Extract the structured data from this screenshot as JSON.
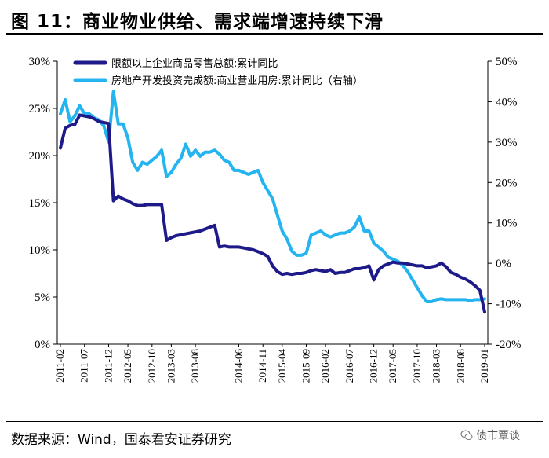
{
  "title": "图  11：商业物业供给、需求端增速持续下滑",
  "source": "数据来源：Wind，国泰君安证券研究",
  "watermark": "债市覃谈",
  "colors": {
    "series1": "#1f1a8a",
    "series2": "#24b5f0",
    "axis": "#000000"
  },
  "chart_data": {
    "type": "line",
    "title": "商业物业供给、需求端增速持续下滑",
    "x": [
      "2011-02",
      "2011-03",
      "2011-04",
      "2011-05",
      "2011-06",
      "2011-07",
      "2011-08",
      "2011-09",
      "2011-10",
      "2011-11",
      "2011-12",
      "2012-02",
      "2012-03",
      "2012-04",
      "2012-05",
      "2012-06",
      "2012-07",
      "2012-08",
      "2012-09",
      "2012-10",
      "2012-11",
      "2012-12",
      "2013-02",
      "2013-03",
      "2013-04",
      "2013-05",
      "2013-06",
      "2013-07",
      "2013-08",
      "2013-09",
      "2013-10",
      "2013-11",
      "2013-12",
      "2014-02",
      "2014-03",
      "2014-04",
      "2014-05",
      "2014-06",
      "2014-07",
      "2014-08",
      "2014-09",
      "2014-10",
      "2014-11",
      "2014-12",
      "2015-02",
      "2015-03",
      "2015-04",
      "2015-05",
      "2015-06",
      "2015-07",
      "2015-08",
      "2015-09",
      "2015-10",
      "2015-11",
      "2015-12",
      "2016-02",
      "2016-03",
      "2016-04",
      "2016-05",
      "2016-06",
      "2016-07",
      "2016-08",
      "2016-09",
      "2016-10",
      "2016-11",
      "2016-12",
      "2017-02",
      "2017-03",
      "2017-04",
      "2017-05",
      "2017-06",
      "2017-07",
      "2017-08",
      "2017-09",
      "2017-10",
      "2017-11",
      "2017-12",
      "2018-02",
      "2018-03",
      "2018-04",
      "2018-05",
      "2018-06",
      "2018-07",
      "2018-08",
      "2018-09",
      "2018-10",
      "2018-11",
      "2018-12",
      "2019-01"
    ],
    "x_tick_labels": [
      "2011-02",
      "2011-07",
      "2011-12",
      "2012-05",
      "2012-10",
      "2013-03",
      "2013-08",
      "2014-01",
      "2014-06",
      "2014-11",
      "2015-04",
      "2015-09",
      "2016-02",
      "2016-07",
      "2016-12",
      "2017-05",
      "2017-10",
      "2018-03",
      "2018-08",
      "2019-01"
    ],
    "series": [
      {
        "name": "限额以上企业商品零售总额:累计同比",
        "axis": "left",
        "values": [
          20.8,
          22.9,
          23.2,
          23.3,
          24.3,
          24.2,
          24.1,
          23.9,
          23.6,
          23.5,
          23.4,
          15.2,
          15.7,
          15.4,
          15.2,
          14.9,
          14.7,
          14.7,
          14.8,
          14.8,
          14.8,
          14.8,
          11.0,
          11.3,
          11.5,
          11.6,
          11.7,
          11.8,
          11.9,
          12.0,
          12.2,
          12.4,
          12.6,
          10.3,
          10.4,
          10.3,
          10.3,
          10.3,
          10.2,
          10.1,
          10.0,
          9.8,
          9.6,
          9.3,
          8.3,
          7.7,
          7.4,
          7.5,
          7.4,
          7.5,
          7.5,
          7.6,
          7.8,
          7.9,
          7.8,
          7.7,
          7.9,
          7.5,
          7.6,
          7.6,
          7.8,
          8.0,
          8.0,
          8.1,
          8.3,
          6.8,
          7.9,
          8.3,
          8.5,
          8.7,
          8.6,
          8.6,
          8.5,
          8.4,
          8.3,
          8.3,
          8.1,
          8.2,
          8.3,
          8.6,
          8.2,
          7.6,
          7.4,
          7.1,
          6.9,
          6.6,
          6.2,
          5.7,
          3.4
        ]
      },
      {
        "name": "房地产开发投资完成额:商业营业用房:累计同比（右轴）",
        "axis": "right",
        "values": [
          37,
          40.5,
          35,
          36.5,
          39,
          37,
          37,
          36,
          35.5,
          34,
          30,
          42.5,
          34.5,
          34.5,
          31,
          25,
          23,
          25,
          24.5,
          25.5,
          26.5,
          28,
          21.5,
          22.5,
          24.5,
          26,
          29.5,
          26.5,
          28,
          26.5,
          27.5,
          27.5,
          28,
          27,
          25.5,
          25,
          23,
          23,
          22.5,
          22,
          22.5,
          23,
          20,
          18,
          16,
          12,
          8,
          6,
          3,
          2,
          2,
          2.5,
          7,
          7.5,
          8,
          7,
          6.5,
          7,
          7.5,
          7.5,
          8,
          9,
          11.5,
          8,
          8,
          5,
          4,
          3,
          1.5,
          1,
          0.5,
          -0.5,
          -2,
          -4,
          -6,
          -8,
          -9.5,
          -9.5,
          -9,
          -8.8,
          -9,
          -9,
          -9,
          -9,
          -9,
          -9.2,
          -9,
          -9,
          -8.8
        ]
      }
    ],
    "left_axis": {
      "min": 0,
      "max": 30,
      "step": 5,
      "format": "percent"
    },
    "right_axis": {
      "min": -20,
      "max": 50,
      "step": 10,
      "format": "percent"
    },
    "left_tick_labels": [
      "0%",
      "5%",
      "10%",
      "15%",
      "20%",
      "25%",
      "30%"
    ],
    "right_tick_labels": [
      "-20%",
      "-10%",
      "0%",
      "10%",
      "20%",
      "30%",
      "40%",
      "50%"
    ],
    "legend": [
      "限额以上企业商品零售总额:累计同比",
      "房地产开发投资完成额:商业营业用房:累计同比（右轴）"
    ],
    "legend_position": "top-left",
    "grid": false
  }
}
